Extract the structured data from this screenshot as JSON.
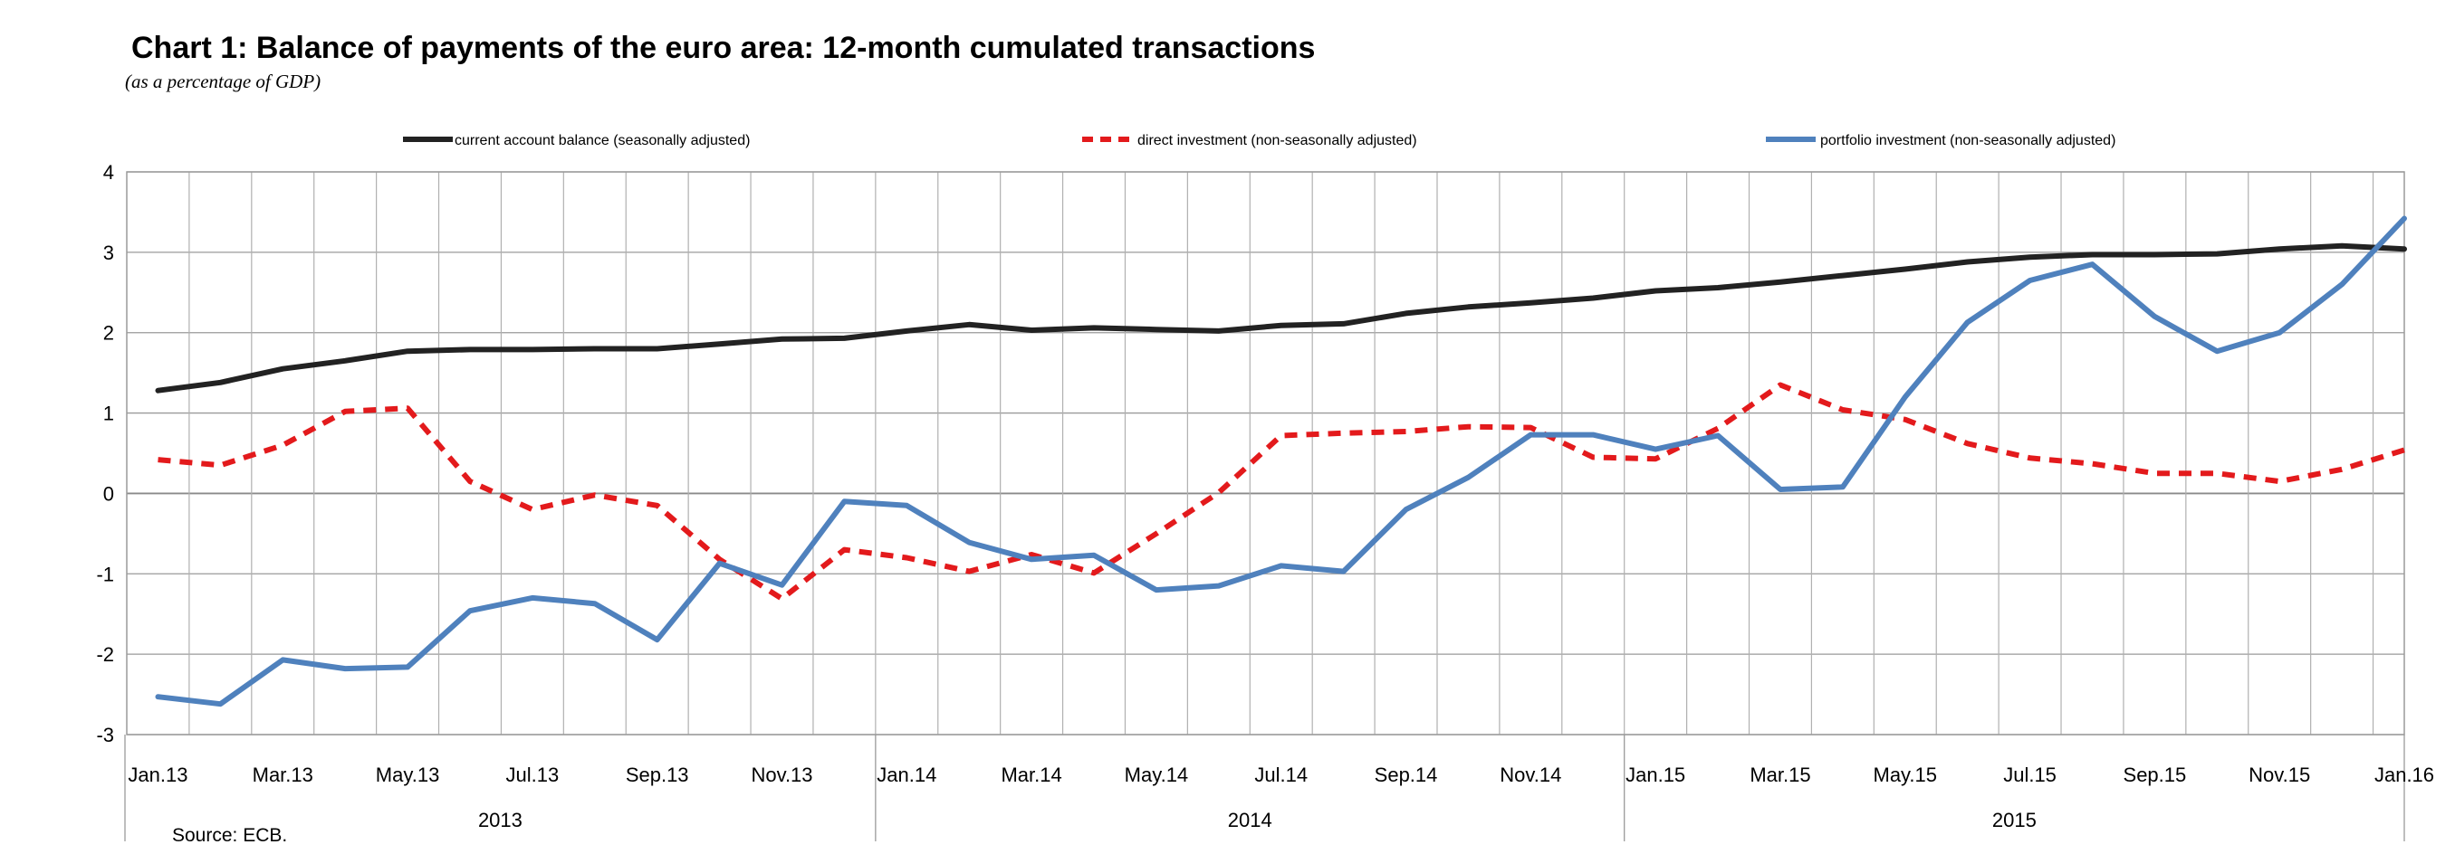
{
  "chart_data": {
    "type": "line",
    "title": "Chart 1: Balance of payments of the euro area: 12-month cumulated transactions",
    "subtitle": "(as a percentage of GDP)",
    "source": "Source: ECB.",
    "ylim": [
      -3,
      4
    ],
    "yticks": [
      4,
      3,
      2,
      1,
      0,
      -1,
      -2,
      -3
    ],
    "grid": true,
    "legend_position": "top",
    "x": [
      "Jan.13",
      "Feb.13",
      "Mar.13",
      "Apr.13",
      "May.13",
      "Jun.13",
      "Jul.13",
      "Aug.13",
      "Sep.13",
      "Oct.13",
      "Nov.13",
      "Dec.13",
      "Jan.14",
      "Feb.14",
      "Mar.14",
      "Apr.14",
      "May.14",
      "Jun.14",
      "Jul.14",
      "Aug.14",
      "Sep.14",
      "Oct.14",
      "Nov.14",
      "Dec.14",
      "Jan.15",
      "Feb.15",
      "Mar.15",
      "Apr.15",
      "May.15",
      "Jun.15",
      "Jul.15",
      "Aug.15",
      "Sep.15",
      "Oct.15",
      "Nov.15",
      "Dec.15",
      "Jan.16"
    ],
    "x_tick_labels": [
      "Jan.13",
      "Mar.13",
      "May.13",
      "Jul.13",
      "Sep.13",
      "Nov.13",
      "Jan.14",
      "Mar.14",
      "May.14",
      "Jul.14",
      "Sep.14",
      "Nov.14",
      "Jan.15",
      "Mar.15",
      "May.15",
      "Jul.15",
      "Sep.15",
      "Nov.15",
      "Jan.16"
    ],
    "year_labels": [
      "2013",
      "2014",
      "2015"
    ],
    "series": [
      {
        "name": "current account balance (seasonally adjusted)",
        "color": "#222222",
        "style": "solid",
        "values": [
          1.28,
          1.38,
          1.55,
          1.65,
          1.77,
          1.79,
          1.79,
          1.8,
          1.8,
          1.86,
          1.92,
          1.93,
          2.02,
          2.1,
          2.03,
          2.06,
          2.04,
          2.02,
          2.09,
          2.11,
          2.24,
          2.32,
          2.37,
          2.43,
          2.52,
          2.56,
          2.63,
          2.71,
          2.79,
          2.88,
          2.94,
          2.97,
          2.97,
          2.98,
          3.04,
          3.08,
          3.04
        ]
      },
      {
        "name": "direct investment (non-seasonally adjusted)",
        "color": "#e31a1c",
        "style": "dashed",
        "values": [
          0.42,
          0.35,
          0.6,
          1.02,
          1.06,
          0.15,
          -0.2,
          -0.02,
          -0.15,
          -0.82,
          -1.31,
          -0.7,
          -0.8,
          -0.97,
          -0.76,
          -0.99,
          -0.5,
          0.01,
          0.72,
          0.75,
          0.77,
          0.83,
          0.82,
          0.45,
          0.43,
          0.81,
          1.35,
          1.04,
          0.92,
          0.62,
          0.44,
          0.37,
          0.25,
          0.25,
          0.15,
          0.3,
          0.54
        ]
      },
      {
        "name": "portfolio investment (non-seasonally adjusted)",
        "color": "#4f81bd",
        "style": "solid",
        "values": [
          -2.53,
          -2.62,
          -2.07,
          -2.18,
          -2.16,
          -1.46,
          -1.3,
          -1.37,
          -1.82,
          -0.87,
          -1.14,
          -0.1,
          -0.15,
          -0.61,
          -0.82,
          -0.77,
          -1.2,
          -1.15,
          -0.9,
          -0.97,
          -0.2,
          0.2,
          0.73,
          0.73,
          0.55,
          0.72,
          0.05,
          0.08,
          1.2,
          2.13,
          2.65,
          2.85,
          2.2,
          1.77,
          2.0,
          2.6,
          3.42
        ]
      }
    ]
  }
}
